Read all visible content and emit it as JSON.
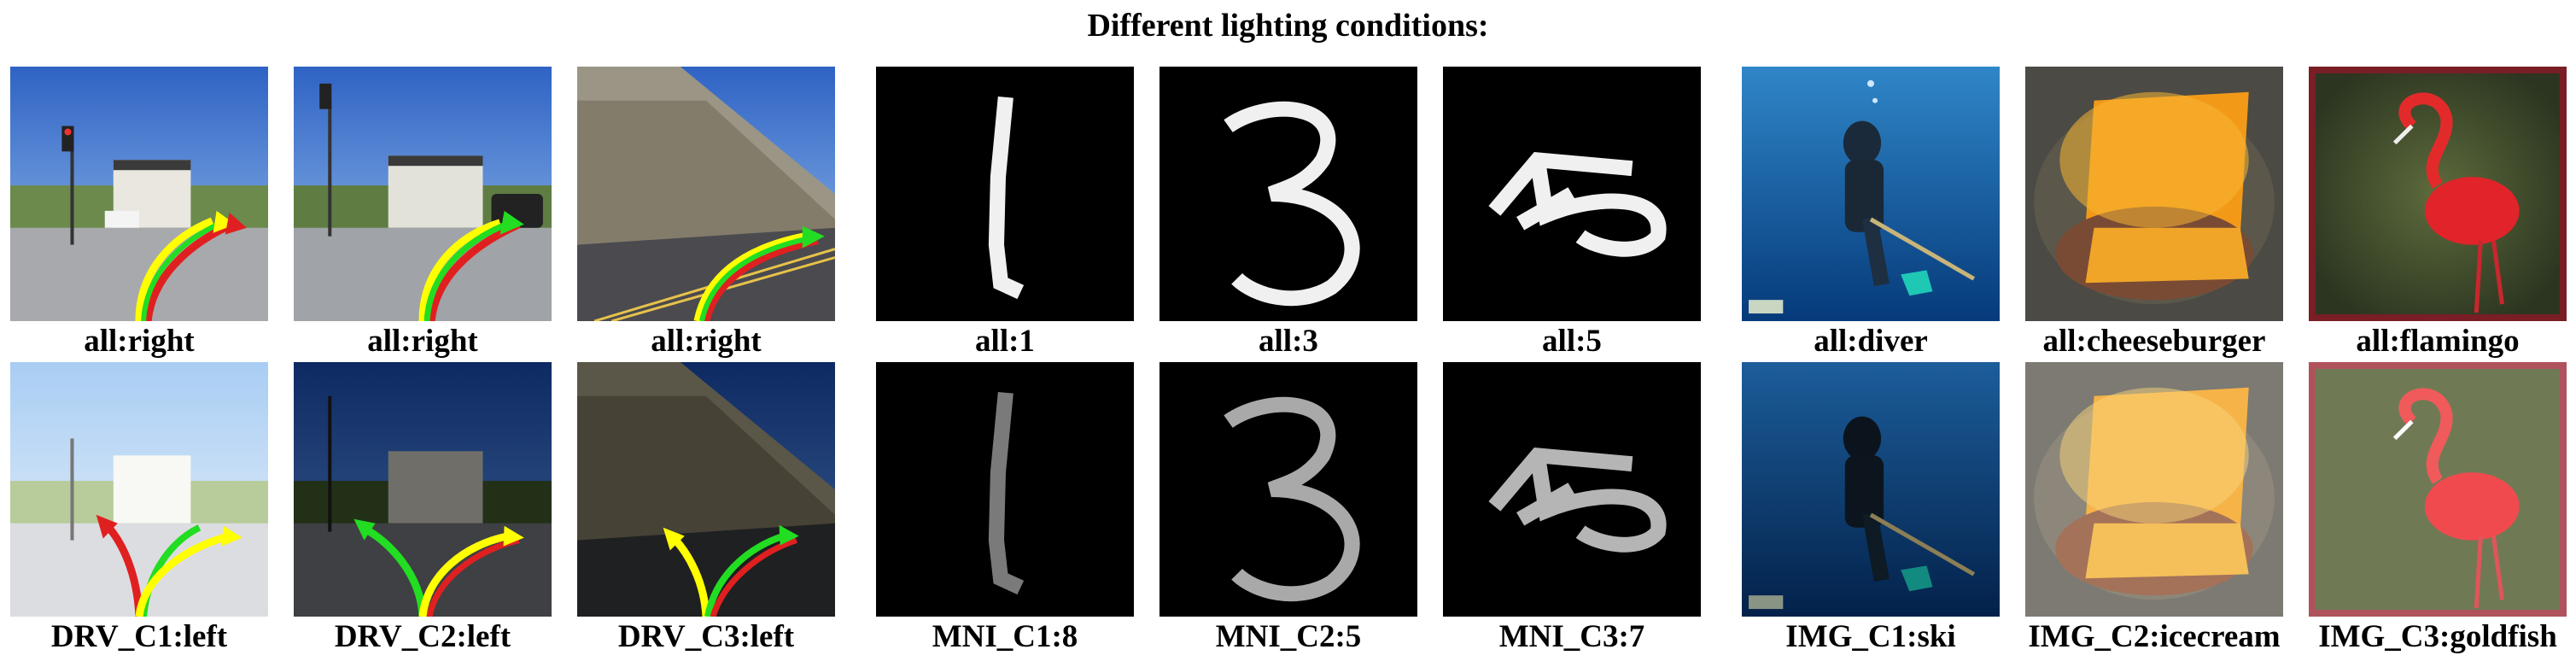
{
  "figure": {
    "title": "Different lighting conditions:",
    "rows": [
      {
        "panels": [
          {
            "caption": "all:right",
            "image": "driving-scene-intersection-traffic-light"
          },
          {
            "caption": "all:right",
            "image": "driving-scene-intersection-traffic-light"
          },
          {
            "caption": "all:right",
            "image": "driving-scene-hillside-road"
          },
          {
            "caption": "all:1",
            "image": "mnist-digit-1"
          },
          {
            "caption": "all:3",
            "image": "mnist-digit-3"
          },
          {
            "caption": "all:5",
            "image": "mnist-digit-5"
          },
          {
            "caption": "all:diver",
            "image": "scuba-diver-underwater"
          },
          {
            "caption": "all:cheeseburger",
            "image": "cheeseburger"
          },
          {
            "caption": "all:flamingo",
            "image": "flamingo-painting"
          }
        ]
      },
      {
        "panels": [
          {
            "caption": "DRV_C1:left",
            "image": "driving-scene-intersection-brightened"
          },
          {
            "caption": "DRV_C2:left",
            "image": "driving-scene-intersection-darkened"
          },
          {
            "caption": "DRV_C3:left",
            "image": "driving-scene-hillside-darkened"
          },
          {
            "caption": "MNI_C1:8",
            "image": "mnist-digit-1-dimmed"
          },
          {
            "caption": "MNI_C2:5",
            "image": "mnist-digit-3-dimmed"
          },
          {
            "caption": "MNI_C3:7",
            "image": "mnist-digit-5-dimmed"
          },
          {
            "caption": "IMG_C1:ski",
            "image": "scuba-diver-darkened"
          },
          {
            "caption": "IMG_C2:icecream",
            "image": "cheeseburger-brightened"
          },
          {
            "caption": "IMG_C3:goldfish",
            "image": "flamingo-painting-brightened"
          }
        ]
      }
    ]
  }
}
